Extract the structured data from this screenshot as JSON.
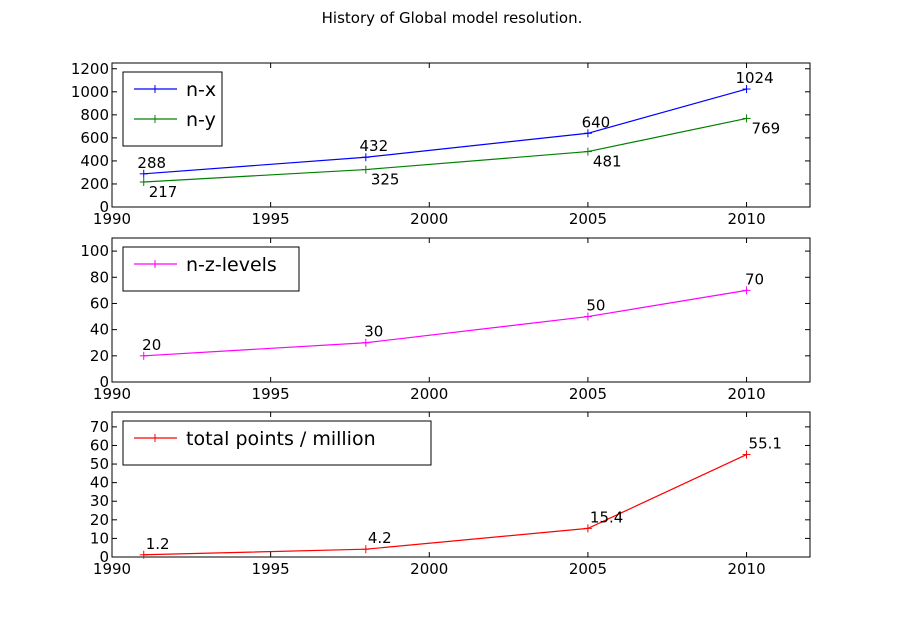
{
  "figure_title": "History of Global model resolution.",
  "chart_data": [
    {
      "type": "line",
      "x": [
        1991,
        1998,
        2005,
        2010
      ],
      "xlim": [
        1990,
        2012
      ],
      "xticks": [
        1990,
        1995,
        2000,
        2005,
        2010
      ],
      "ylim": [
        0,
        1250
      ],
      "yticks": [
        0,
        200,
        400,
        600,
        800,
        1000,
        1200
      ],
      "legend_position": "upper-left",
      "series": [
        {
          "name": "n-x",
          "color": "#0000ff",
          "values": [
            288,
            432,
            640,
            1024
          ],
          "labels": [
            "288",
            "432",
            "640",
            "1024"
          ],
          "label_side": "above"
        },
        {
          "name": "n-y",
          "color": "#008000",
          "values": [
            217,
            325,
            481,
            769
          ],
          "labels": [
            "217",
            "325",
            "481",
            "769"
          ],
          "label_side": "right"
        }
      ]
    },
    {
      "type": "line",
      "x": [
        1991,
        1998,
        2005,
        2010
      ],
      "xlim": [
        1990,
        2012
      ],
      "xticks": [
        1990,
        1995,
        2000,
        2005,
        2010
      ],
      "ylim": [
        0,
        110
      ],
      "yticks": [
        0,
        20,
        40,
        60,
        80,
        100
      ],
      "legend_position": "upper-left",
      "series": [
        {
          "name": "n-z-levels",
          "color": "#ff00ff",
          "values": [
            20,
            30,
            50,
            70
          ],
          "labels": [
            "20",
            "30",
            "50",
            "70"
          ],
          "label_side": "above"
        }
      ]
    },
    {
      "type": "line",
      "x": [
        1991,
        1998,
        2005,
        2010
      ],
      "xlim": [
        1990,
        2012
      ],
      "xticks": [
        1990,
        1995,
        2000,
        2005,
        2010
      ],
      "ylim": [
        0,
        78
      ],
      "yticks": [
        0,
        10,
        20,
        30,
        40,
        50,
        60,
        70
      ],
      "legend_position": "upper-left",
      "series": [
        {
          "name": "total points / million",
          "color": "#ff0000",
          "values": [
            1.2,
            4.2,
            15.4,
            55.1
          ],
          "labels": [
            "1.2",
            "4.2",
            "15.4",
            "55.1"
          ],
          "label_side": "above-right"
        }
      ]
    }
  ]
}
